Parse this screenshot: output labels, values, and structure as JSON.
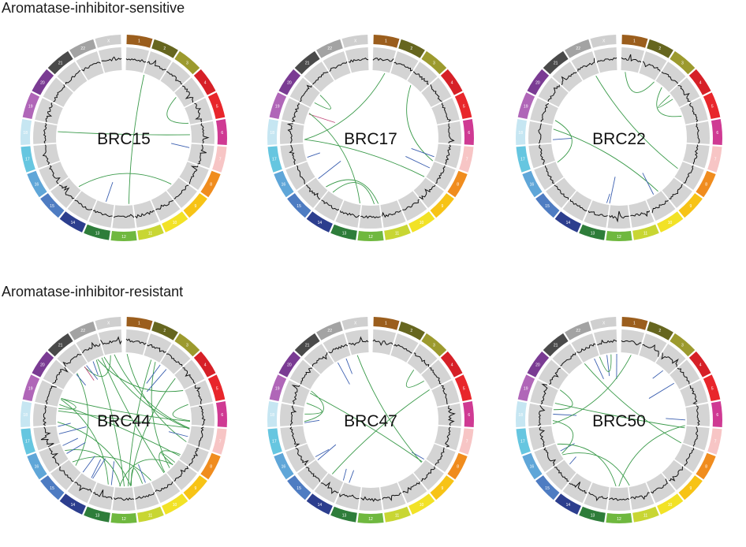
{
  "sections": {
    "sensitive_title": "Aromatase-inhibitor-sensitive",
    "resistant_title": "Aromatase-inhibitor-resistant"
  },
  "chromosome_ring": {
    "labels": [
      "1",
      "2",
      "3",
      "4",
      "5",
      "6",
      "7",
      "8",
      "9",
      "10",
      "11",
      "12",
      "13",
      "14",
      "15",
      "16",
      "17",
      "18",
      "19",
      "20",
      "21",
      "22",
      "X"
    ],
    "colors": [
      "#9b5e1d",
      "#66661f",
      "#9c9a2e",
      "#d62027",
      "#e8262b",
      "#cf3a93",
      "#f7c5c5",
      "#f08c1e",
      "#f7c316",
      "#f2e226",
      "#c8d633",
      "#6fb83f",
      "#2e7d3a",
      "#2c3e8e",
      "#4e7cc2",
      "#5fa6d8",
      "#66c6e0",
      "#c6e6f2",
      "#b066b8",
      "#7a3b93",
      "#4a4a4a",
      "#a3a3a3",
      "#cfcfcf"
    ]
  },
  "colors": {
    "track_bg": "#d4d4d4",
    "cn_line": "#111111",
    "sv_intra": "#3b5fb0",
    "sv_inter": "#3a9a4a",
    "sv_other": "#c24a7a"
  },
  "panels": [
    {
      "id": "BRC15",
      "label": "BRC15"
    },
    {
      "id": "BRC17",
      "label": "BRC17"
    },
    {
      "id": "BRC22",
      "label": "BRC22"
    },
    {
      "id": "BRC44",
      "label": "BRC44"
    },
    {
      "id": "BRC47",
      "label": "BRC47"
    },
    {
      "id": "BRC50",
      "label": "BRC50"
    }
  ]
}
